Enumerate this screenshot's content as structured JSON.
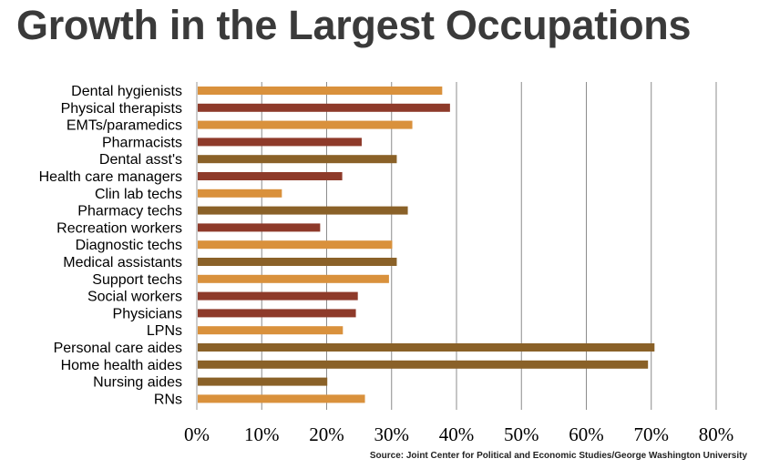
{
  "title": "Growth in the Largest Occupations",
  "source": "Source: Joint Center for Political and Economic Studies/George Washington University",
  "chart_data": {
    "type": "bar",
    "orientation": "horizontal",
    "title": "Growth in the Largest Occupations",
    "xlabel": "",
    "ylabel": "",
    "xlim": [
      0,
      80
    ],
    "grid": true,
    "x_ticks": [
      "0%",
      "10%",
      "20%",
      "30%",
      "40%",
      "50%",
      "60%",
      "70%",
      "80%"
    ],
    "categories": [
      "Dental hygienists",
      "Physical therapists",
      "EMTs/paramedics",
      "Pharmacists",
      "Dental asst's",
      "Health care managers",
      "Clin lab techs",
      "Pharmacy techs",
      "Recreation workers",
      "Diagnostic techs",
      "Medical assistants",
      "Support techs",
      "Social workers",
      "Physicians",
      "LPNs",
      "Personal care aides",
      "Home health aides",
      "Nursing aides",
      "RNs"
    ],
    "values": [
      37.8,
      39,
      33.2,
      25.4,
      30.8,
      22.4,
      13.1,
      32.5,
      19,
      30.1,
      30.8,
      29.6,
      24.8,
      24.5,
      22.5,
      70.5,
      69.5,
      20.1,
      25.9
    ],
    "bar_colors": [
      "#d9913c",
      "#8e3a2a",
      "#d9913c",
      "#8e3a2a",
      "#8a6128",
      "#8e3a2a",
      "#d9913c",
      "#8a6128",
      "#8e3a2a",
      "#d9913c",
      "#8a6128",
      "#d9913c",
      "#8e3a2a",
      "#8e3a2a",
      "#d9913c",
      "#8a6128",
      "#8a6128",
      "#8a6128",
      "#d9913c"
    ]
  }
}
